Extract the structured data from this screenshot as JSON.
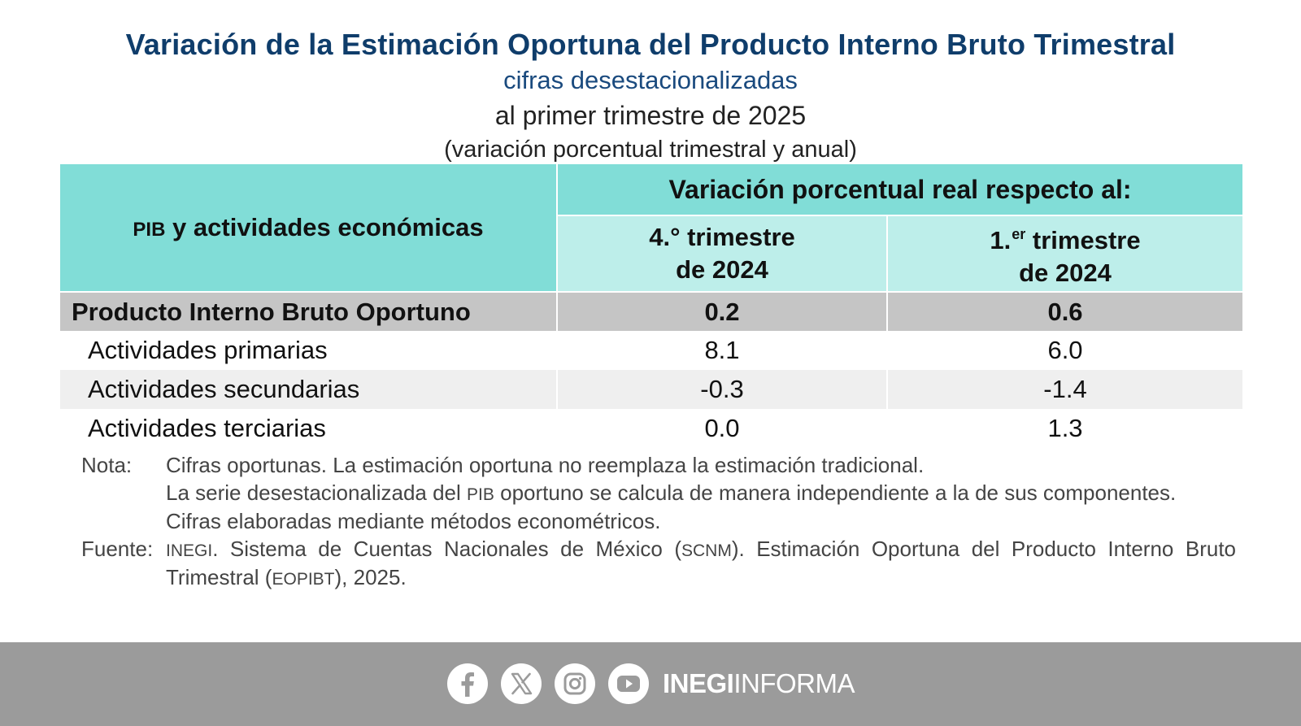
{
  "header": {
    "title": "Variación de la Estimación Oportuna del Producto Interno Bruto Trimestral",
    "subtitle": "cifras desestacionalizadas",
    "period": "al primer trimestre de 2025",
    "units": "(variación porcentual trimestral y anual)"
  },
  "table": {
    "col_label_prefix": "PIB",
    "col_label_rest": " y actividades económicas",
    "group_header": "Variación porcentual real respecto al:",
    "col1_line1": "4.° trimestre",
    "col1_line2": "de 2024",
    "col2_num": "1.",
    "col2_sup": "er",
    "col2_rest": " trimestre",
    "col2_line2": "de 2024",
    "rows": [
      {
        "label": "Producto Interno Bruto Oportuno",
        "q4_2024": "0.2",
        "q1_2024": "0.6"
      },
      {
        "label": "Actividades primarias",
        "q4_2024": "8.1",
        "q1_2024": "6.0"
      },
      {
        "label": "Actividades secundarias",
        "q4_2024": "-0.3",
        "q1_2024": "-1.4"
      },
      {
        "label": "Actividades terciarias",
        "q4_2024": "0.0",
        "q1_2024": "1.3"
      }
    ]
  },
  "notes": {
    "nota_label": "Nota:",
    "nota_1": "Cifras oportunas. La estimación oportuna no reemplaza la estimación tradicional.",
    "nota_2a": "La serie desestacionalizada del ",
    "nota_2_pib": "PIB",
    "nota_2b": " oportuno se calcula de manera independiente a la de sus componentes.",
    "nota_3": "Cifras elaboradas mediante métodos econométricos.",
    "fuente_label": "Fuente:",
    "fuente_inegi": "INEGI",
    "fuente_a": ". Sistema de Cuentas Nacionales de México (",
    "fuente_scnm": "SCNM",
    "fuente_b": "). Estimación Oportuna del Producto Interno Bruto Trimestral (",
    "fuente_eopibt": "EOPIBT",
    "fuente_c": "), 2025."
  },
  "footer": {
    "brand_bold": "INEGI",
    "brand_light": "INFORMA",
    "icons": [
      "facebook-icon",
      "x-icon",
      "instagram-icon",
      "youtube-icon"
    ],
    "background": "#9b9b9b"
  }
}
